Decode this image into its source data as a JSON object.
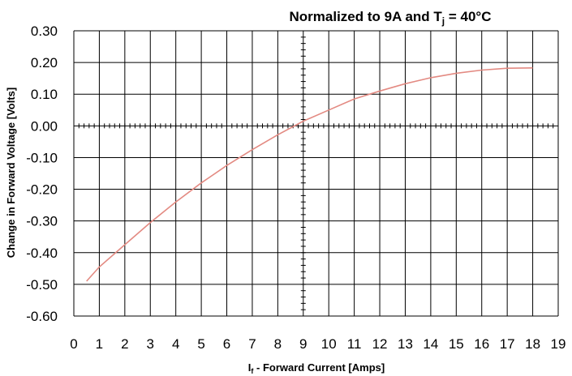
{
  "chart_data": {
    "type": "line",
    "title": "Normalized to 9A and Tj = 40°C",
    "title_parts": {
      "prefix": "Normalized to 9A and T",
      "subscript": "j",
      "suffix": " = 40°C"
    },
    "xlabel": "If - Forward Current [Amps]",
    "xlabel_parts": {
      "prefix": "I",
      "subscript": "f",
      "suffix": " - Forward Current [Amps]"
    },
    "ylabel": "Change in Forward Voltage [Volts]",
    "xlim": [
      0,
      19
    ],
    "ylim": [
      -0.6,
      0.3
    ],
    "xticks": [
      0,
      1,
      2,
      3,
      4,
      5,
      6,
      7,
      8,
      9,
      10,
      11,
      12,
      13,
      14,
      15,
      16,
      17,
      18,
      19
    ],
    "yticks": [
      0.3,
      0.2,
      0.1,
      0.0,
      -0.1,
      -0.2,
      -0.3,
      -0.4,
      -0.5,
      -0.6
    ],
    "ytick_labels": [
      "0.30",
      "0.20",
      "0.10",
      "0.00",
      "-0.10",
      "-0.20",
      "-0.30",
      "-0.40",
      "-0.50",
      "-0.60"
    ],
    "grid": true,
    "series": [
      {
        "color": "#e38a82",
        "x": [
          0.5,
          1,
          2,
          3,
          4,
          5,
          6,
          7,
          8,
          9,
          10,
          11,
          12,
          13,
          14,
          15,
          16,
          17,
          18
        ],
        "y": [
          -0.49,
          -0.445,
          -0.375,
          -0.305,
          -0.24,
          -0.18,
          -0.125,
          -0.075,
          -0.028,
          0.015,
          0.05,
          0.085,
          0.11,
          0.133,
          0.152,
          0.166,
          0.176,
          0.182,
          0.183
        ]
      }
    ]
  }
}
